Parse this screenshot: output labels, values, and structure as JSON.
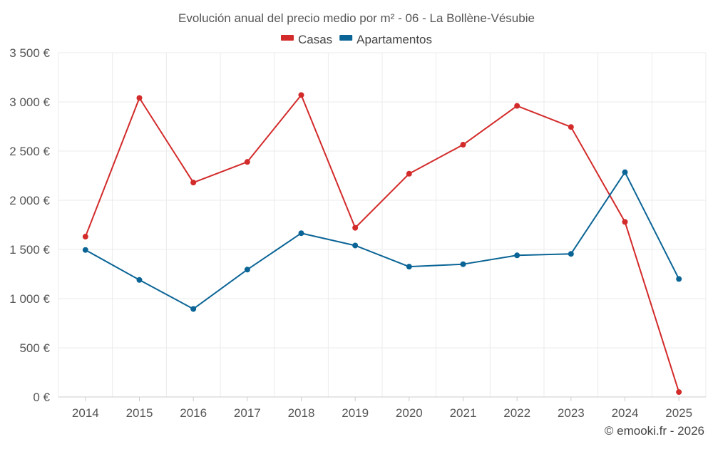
{
  "chart_data": {
    "type": "line",
    "title": "Evolución anual del precio medio por m² - 06 - La Bollène-Vésubie",
    "x": [
      "2014",
      "2015",
      "2016",
      "2017",
      "2018",
      "2019",
      "2020",
      "2021",
      "2022",
      "2023",
      "2024",
      "2025"
    ],
    "series": [
      {
        "name": "Casas",
        "color": "#d32a2a",
        "values": [
          1630,
          3040,
          2180,
          2390,
          3070,
          1720,
          2270,
          2565,
          2960,
          2745,
          1780,
          50
        ]
      },
      {
        "name": "Apartamentos",
        "color": "#0a6496",
        "values": [
          1495,
          1190,
          895,
          1295,
          1665,
          1540,
          1325,
          1350,
          1440,
          1455,
          2285,
          1200
        ]
      }
    ],
    "ylim": [
      0,
      3500
    ],
    "yticks": [
      0,
      500,
      1000,
      1500,
      2000,
      2500,
      3000,
      3500
    ],
    "ytick_labels": [
      "0 €",
      "500 €",
      "1 000 €",
      "1 500 €",
      "2 000 €",
      "2 500 €",
      "3 000 €",
      "3 500 €"
    ],
    "grid": true,
    "legend_position": "top-center"
  },
  "credit": "© emooki.fr - 2026"
}
